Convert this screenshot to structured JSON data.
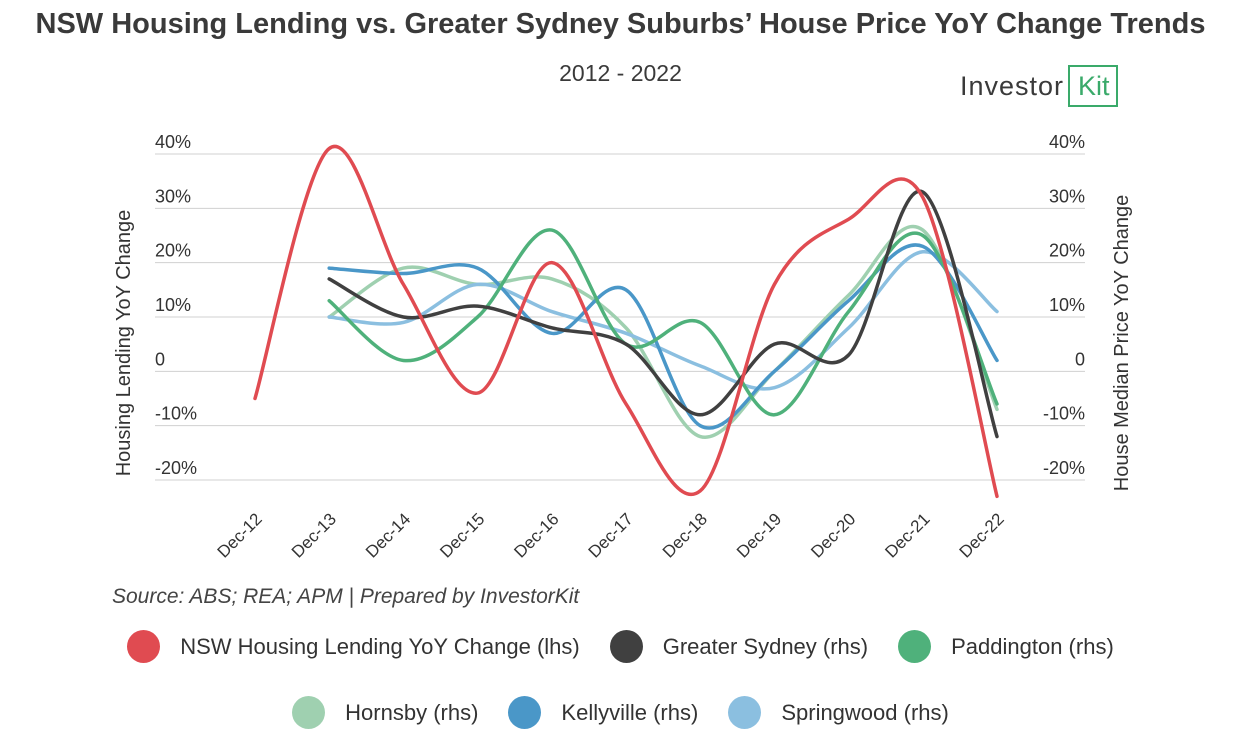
{
  "header": {
    "title": "NSW Housing Lending vs. Greater Sydney Suburbs’ House Price YoY Change Trends",
    "subtitle": "2012 - 2022"
  },
  "logo": {
    "text_main": "Investor",
    "text_box": "Kit",
    "color": "#3aaa6a"
  },
  "source": "Source: ABS; REA; APM | Prepared by InvestorKit",
  "chart_data": {
    "type": "line",
    "title": "NSW Housing Lending vs. Greater Sydney Suburbs’ House Price YoY Change Trends",
    "subtitle": "2012 - 2022",
    "categories": [
      "Dec-12",
      "Dec-13",
      "Dec-14",
      "Dec-15",
      "Dec-16",
      "Dec-17",
      "Dec-18",
      "Dec-19",
      "Dec-20",
      "Dec-21",
      "Dec-22"
    ],
    "ylabel_left": "Housing Lending YoY Change",
    "ylabel_right": "House Median Price YoY Change",
    "ylim": [
      -20,
      40
    ],
    "y_ticks": [
      40,
      30,
      20,
      10,
      0,
      -10,
      -20
    ],
    "y_tick_labels": [
      "40%",
      "30%",
      "20%",
      "10%",
      "0",
      "-10%",
      "-20%"
    ],
    "grid": true,
    "legend_position": "bottom",
    "series": [
      {
        "name": "NSW Housing Lending YoY Change (lhs)",
        "color": "#e04b51",
        "values": [
          -5,
          41,
          16,
          -4,
          20,
          -6,
          -22,
          16,
          28,
          32,
          -23
        ]
      },
      {
        "name": "Greater Sydney (rhs)",
        "color": "#404040",
        "values": [
          null,
          17,
          10,
          12,
          8,
          5,
          -8,
          5,
          3,
          33,
          -12
        ]
      },
      {
        "name": "Paddington (rhs)",
        "color": "#4fb17b",
        "values": [
          null,
          13,
          2,
          10,
          26,
          5,
          9,
          -8,
          11,
          25,
          -6
        ]
      },
      {
        "name": "Hornsby (rhs)",
        "color": "#9fd0b0",
        "values": [
          null,
          10,
          19,
          16,
          17,
          8,
          -12,
          0,
          14,
          26,
          -7
        ]
      },
      {
        "name": "Kellyville (rhs)",
        "color": "#4a97c8",
        "values": [
          null,
          19,
          18,
          19,
          7,
          15,
          -10,
          0,
          13,
          23,
          2
        ]
      },
      {
        "name": "Springwood (rhs)",
        "color": "#8bbfe0",
        "values": [
          null,
          10,
          9,
          16,
          11,
          7,
          1,
          -3,
          8,
          22,
          11
        ]
      }
    ]
  }
}
